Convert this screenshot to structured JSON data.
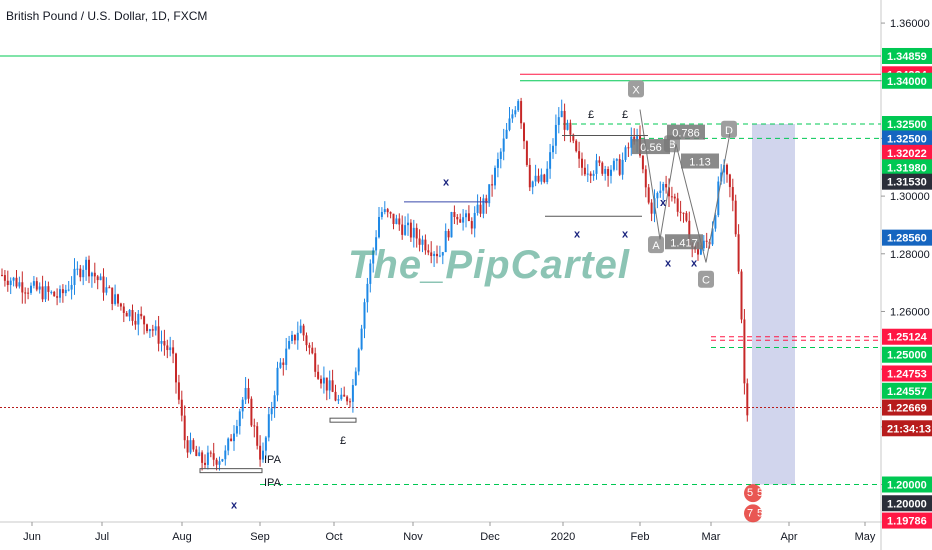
{
  "header": {
    "symbol_title": "British Pound / U.S. Dollar, 1D, FXCM",
    "watermark": "The_PipCartel"
  },
  "colors": {
    "up": "#26a69a",
    "down": "#ef5350",
    "candle_up_fill": "#1e88e5",
    "candle_down_fill": "#c62828",
    "green_line": "#00c853",
    "red_line": "#ff1744",
    "projection": "#c5cae9",
    "text": "#131722",
    "axis_bg": "#ffffff"
  },
  "chart_data": {
    "type": "candlestick",
    "title": "British Pound / U.S. Dollar, 1D, FXCM",
    "x_ticks": [
      "Jun",
      "Jul",
      "Aug",
      "Sep",
      "Oct",
      "Nov",
      "Dec",
      "2020",
      "Feb",
      "Mar",
      "Apr",
      "May"
    ],
    "y_ticks": [
      1.36,
      1.34,
      1.32,
      1.3,
      1.28,
      1.26,
      1.24,
      1.22,
      1.2
    ],
    "ylim": [
      1.187,
      1.368
    ],
    "price_tags": [
      {
        "label": "1.34859",
        "value": 1.34859,
        "color": "green"
      },
      {
        "label": "1.34224",
        "value": 1.34224,
        "color": "red"
      },
      {
        "label": "1.34000",
        "value": 1.34,
        "color": "green"
      },
      {
        "label": "1.32500",
        "value": 1.325,
        "color": "green"
      },
      {
        "label": "1.32500",
        "value": 1.32,
        "color": "blue"
      },
      {
        "label": "1.32022",
        "value": 1.315,
        "color": "red"
      },
      {
        "label": "1.31980",
        "value": 1.31,
        "color": "green"
      },
      {
        "label": "1.31530",
        "value": 1.305,
        "color": "dark"
      },
      {
        "label": "1.28560",
        "value": 1.2856,
        "color": "blue"
      },
      {
        "label": "1.25124",
        "value": 1.25124,
        "color": "red"
      },
      {
        "label": "1.25000",
        "value": 1.245,
        "color": "green"
      },
      {
        "label": "1.24753",
        "value": 1.2385,
        "color": "red"
      },
      {
        "label": "1.24557",
        "value": 1.2325,
        "color": "green"
      },
      {
        "label": "1.22669",
        "value": 1.22669,
        "color": "darkred"
      },
      {
        "label": "21:34:13",
        "value": 1.2195,
        "color": "darkred"
      },
      {
        "label": "1.20000",
        "value": 1.2,
        "color": "green"
      },
      {
        "label": "1.20000",
        "value": 1.1935,
        "color": "dark"
      },
      {
        "label": "1.19786",
        "value": 1.1875,
        "color": "red"
      }
    ],
    "horizontal_levels": [
      {
        "value": 1.34859,
        "style": "solid",
        "color": "green",
        "x_start": "left edge"
      },
      {
        "value": 1.34224,
        "style": "solid",
        "color": "red",
        "x_start": "Dec"
      },
      {
        "value": 1.34,
        "style": "solid",
        "color": "green",
        "x_start": "Dec"
      },
      {
        "value": 1.325,
        "style": "dashed",
        "color": "green",
        "x_start": "2020"
      },
      {
        "value": 1.32,
        "style": "dashed",
        "color": "green",
        "x_start": "Feb"
      },
      {
        "value": 1.25124,
        "style": "dashed",
        "color": "red",
        "x_start": "Mar"
      },
      {
        "value": 1.25,
        "style": "dashed",
        "color": "red",
        "x_start": "Mar"
      },
      {
        "value": 1.2475,
        "style": "dashed",
        "color": "green",
        "x_start": "Mar"
      },
      {
        "value": 1.22669,
        "style": "dotted",
        "color": "darkred",
        "x_start": "left edge"
      },
      {
        "value": 1.2,
        "style": "dashed",
        "color": "green",
        "x_start": "Sep"
      }
    ],
    "annotations": [
      "X",
      "A",
      "B",
      "C",
      "D",
      "0.56",
      "0.786",
      "1.13",
      "1.417",
      "IPA",
      "IPA",
      "£",
      "£",
      "£",
      "x",
      "x",
      "x",
      "x",
      "x",
      "x",
      "x",
      "5",
      "5",
      "7",
      "5"
    ],
    "projection_box": {
      "y_top": 1.325,
      "y_bottom": 1.2,
      "x_start": "Mar",
      "x_end": "Apr"
    },
    "grid": false,
    "legend": "none"
  }
}
